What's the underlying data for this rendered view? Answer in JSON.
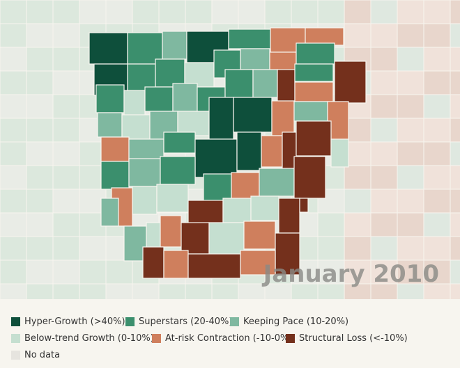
{
  "map": {
    "date_label": "January 2010",
    "legend": [
      {
        "label": "Hyper-Growth (>40%)",
        "color": "#0e4f3b"
      },
      {
        "label": "Superstars (20-40%)",
        "color": "#3b8f6d"
      },
      {
        "label": "Keeping Pace (10-20%)",
        "color": "#7fb8a0"
      },
      {
        "label": "Below-trend Growth (0-10%)",
        "color": "#c5dfd0"
      },
      {
        "label": "At-risk Contraction (-10-0%)",
        "color": "#cf7f5d"
      },
      {
        "label": "Structural Loss (<-10%)",
        "color": "#74301c"
      },
      {
        "label": "No data",
        "color": "#e6e4df"
      }
    ]
  }
}
